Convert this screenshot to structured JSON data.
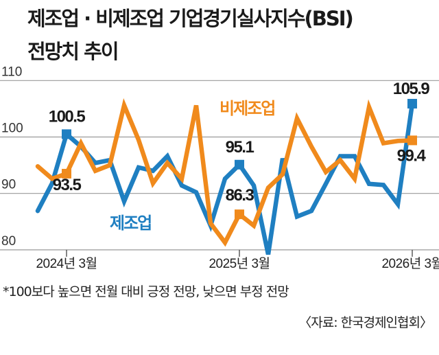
{
  "chart_data": {
    "type": "line",
    "title": "제조업 · 비제조업 기업경기실사지수(BSI) 전망치 추이",
    "title_lines": [
      "제조업 · 비제조업 기업경기실사지수(BSI)",
      "전망치 추이"
    ],
    "x": [
      "2024-01",
      "2024-02",
      "2024-03",
      "2024-04",
      "2024-05",
      "2024-06",
      "2024-07",
      "2024-08",
      "2024-09",
      "2024-10",
      "2024-11",
      "2024-12",
      "2025-01",
      "2025-02",
      "2025-03",
      "2025-04",
      "2025-05",
      "2025-06",
      "2025-07",
      "2025-08",
      "2025-09",
      "2025-10",
      "2025-11",
      "2025-12",
      "2026-01",
      "2026-02",
      "2026-03"
    ],
    "x_tick_labels": [
      "2024년 3월",
      "2025년 3월",
      "2026년 3월"
    ],
    "y_ticks": [
      "80",
      "90",
      "100",
      "110"
    ],
    "ylim": [
      80,
      110
    ],
    "grid": true,
    "series": [
      {
        "name": "제조업",
        "color": "#1f7fc1",
        "values": [
          86.9,
          91.8,
          100.5,
          98.3,
          95.4,
          95.9,
          88.6,
          94.6,
          94.0,
          96.6,
          91.4,
          90.2,
          84.3,
          92.6,
          95.1,
          91.4,
          79.2,
          96.2,
          85.9,
          86.9,
          91.7,
          96.6,
          96.6,
          91.7,
          91.5,
          88.1,
          105.9
        ]
      },
      {
        "name": "비제조업",
        "color": "#f08a1c",
        "values": [
          94.8,
          92.6,
          93.5,
          98.9,
          94.0,
          95.0,
          105.6,
          99.5,
          91.8,
          95.4,
          92.6,
          105.6,
          84.7,
          81.3,
          86.3,
          84.3,
          91.0,
          93.4,
          103.3,
          98.3,
          93.8,
          95.9,
          92.6,
          105.3,
          98.9,
          99.3,
          99.4
        ]
      }
    ],
    "annotations": [
      "100.5",
      "93.5",
      "95.1",
      "86.3",
      "105.9",
      "99.4"
    ]
  },
  "footnote": "*100보다 높으면 전월 대비 긍정 전망, 낮으면 부정 전망",
  "source": "〈자료: 한국경제인협회〉"
}
